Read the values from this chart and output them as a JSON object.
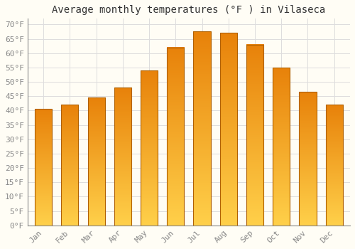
{
  "title": "Average monthly temperatures (°F ) in Vilaseca",
  "months": [
    "Jan",
    "Feb",
    "Mar",
    "Apr",
    "May",
    "Jun",
    "Jul",
    "Aug",
    "Sep",
    "Oct",
    "Nov",
    "Dec"
  ],
  "values": [
    40.5,
    42.0,
    44.5,
    48.0,
    54.0,
    62.0,
    67.5,
    67.0,
    63.0,
    55.0,
    46.5,
    42.0
  ],
  "bar_color_bottom": "#FFD04A",
  "bar_color_top": "#E8820A",
  "bar_edge_color": "#B06000",
  "background_color": "#FFFDF5",
  "grid_color": "#DDDDDD",
  "yticks": [
    0,
    5,
    10,
    15,
    20,
    25,
    30,
    35,
    40,
    45,
    50,
    55,
    60,
    65,
    70
  ],
  "ylim": [
    0,
    72
  ],
  "title_fontsize": 10,
  "tick_fontsize": 8,
  "font_family": "monospace"
}
